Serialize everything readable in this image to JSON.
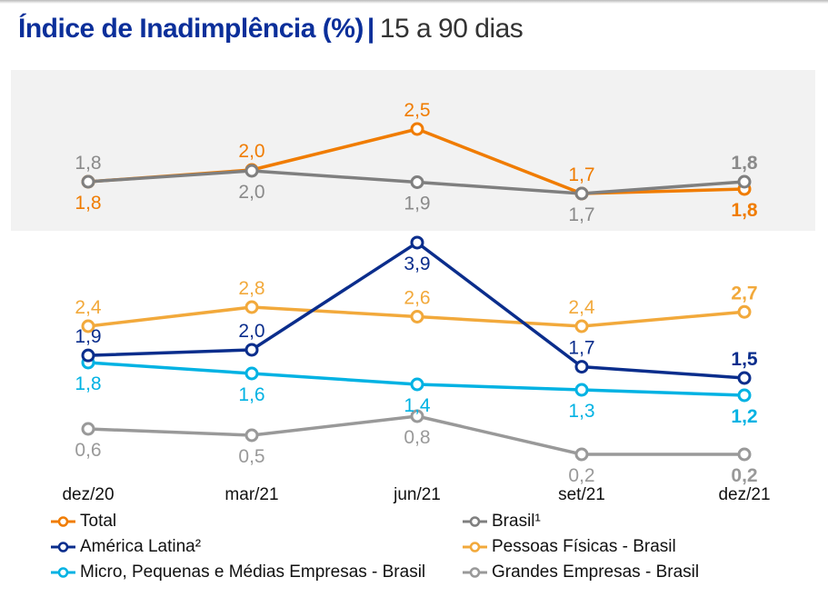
{
  "title": {
    "main": "Índice de Inadimplência (%)",
    "separator": "|",
    "subtitle": "15 a 90 dias"
  },
  "chart_data": {
    "type": "line",
    "title": "Índice de Inadimplência (%) | 15 a 90 dias",
    "xlabel": "",
    "ylabel": "",
    "grid": false,
    "legend_position": "bottom",
    "categories": [
      "dez/20",
      "mar/21",
      "jun/21",
      "set/21",
      "dez/21"
    ],
    "panels": [
      {
        "name": "upper-panel",
        "shaded": true,
        "series": [
          "Total",
          "Brasil¹"
        ]
      },
      {
        "name": "lower-panel",
        "shaded": false,
        "series": [
          "América Latina²",
          "Pessoas Físicas - Brasil",
          "Micro, Pequenas e Médias Empresas - Brasil",
          "Grandes Empresas - Brasil"
        ]
      }
    ],
    "series": [
      {
        "key": "total",
        "name": "Total",
        "color": "#F07C00",
        "values": [
          1.8,
          2.0,
          2.5,
          1.7,
          1.8
        ],
        "labels": [
          "1,8",
          "2,0",
          "2,5",
          "1,7",
          "1,8"
        ],
        "label_pos": [
          "below",
          "above",
          "above",
          "above",
          "below"
        ]
      },
      {
        "key": "brasil",
        "name": "Brasil¹",
        "color": "#7F7F7F",
        "values": [
          1.8,
          2.0,
          1.9,
          1.7,
          1.8
        ],
        "labels": [
          "1,8",
          "2,0",
          "1,9",
          "1,7",
          "1,8"
        ],
        "label_pos": [
          "above",
          "below",
          "below",
          "below",
          "above"
        ]
      },
      {
        "key": "america_latina",
        "name": "América Latina²",
        "color": "#0A2D8C",
        "values": [
          1.9,
          2.0,
          3.9,
          1.7,
          1.5
        ],
        "labels": [
          "1,9",
          "2,0",
          "3,9",
          "1,7",
          "1,5"
        ],
        "label_pos": [
          "above",
          "above",
          "below",
          "above",
          "above"
        ]
      },
      {
        "key": "pessoas_fisicas",
        "name": "Pessoas Físicas - Brasil",
        "color": "#F2A93B",
        "values": [
          2.4,
          2.8,
          2.6,
          2.4,
          2.7
        ],
        "labels": [
          "2,4",
          "2,8",
          "2,6",
          "2,4",
          "2,7"
        ],
        "label_pos": [
          "above",
          "above",
          "above",
          "above",
          "above"
        ]
      },
      {
        "key": "mpme",
        "name": "Micro, Pequenas e Médias Empresas - Brasil",
        "color": "#00B2E3",
        "values": [
          1.8,
          1.6,
          1.4,
          1.3,
          1.2
        ],
        "labels": [
          "1,8",
          "1,6",
          "1,4",
          "1,3",
          "1,2"
        ],
        "label_pos": [
          "below",
          "below",
          "below",
          "below",
          "below"
        ]
      },
      {
        "key": "grandes_empresas",
        "name": "Grandes Empresas - Brasil",
        "color": "#999999",
        "values": [
          0.6,
          0.5,
          0.8,
          0.2,
          0.2
        ],
        "labels": [
          "0,6",
          "0,5",
          "0,8",
          "0,2",
          "0,2"
        ],
        "label_pos": [
          "below",
          "below",
          "below",
          "below",
          "below"
        ]
      }
    ],
    "last_point_labels_bold": true
  },
  "legend": {
    "left": [
      {
        "key": "total",
        "label": "Total",
        "color": "#F07C00"
      },
      {
        "key": "america_latina",
        "label": "América Latina²",
        "color": "#0A2D8C"
      },
      {
        "key": "mpme",
        "label": "Micro, Pequenas e Médias Empresas - Brasil",
        "color": "#00B2E3"
      }
    ],
    "right": [
      {
        "key": "brasil",
        "label": "Brasil¹",
        "color": "#7F7F7F"
      },
      {
        "key": "pessoas_fisicas",
        "label": "Pessoas Físicas - Brasil",
        "color": "#F2A93B"
      },
      {
        "key": "grandes_empresas",
        "label": "Grandes Empresas - Brasil",
        "color": "#999999"
      }
    ]
  },
  "colors": {
    "title": "#0B2F9A",
    "panel_background": "#F2F2F2"
  }
}
